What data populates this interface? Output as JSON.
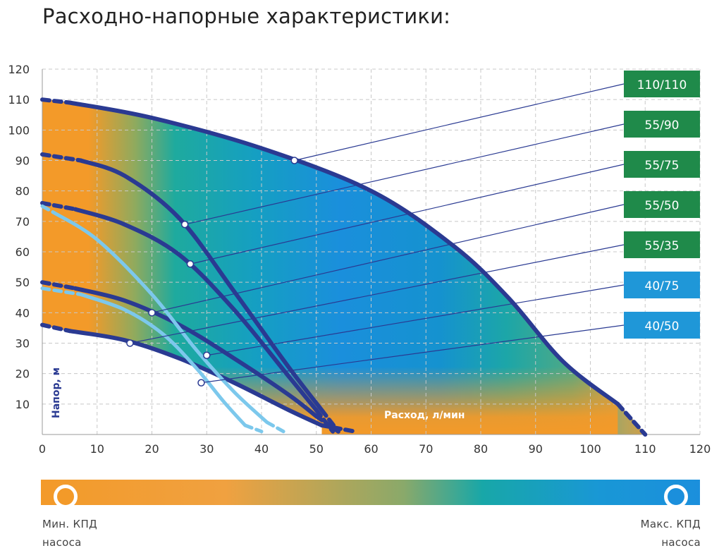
{
  "title": "Расходно-напорные характеристики:",
  "colors": {
    "curve_dark": "#2a3a92",
    "curve_light": "#7cc8ec",
    "label_green": "#1f8a4a",
    "label_blue": "#1f97d8",
    "efficiency_min": "#f39a29",
    "efficiency_max": "#1b8fdc"
  },
  "chart_data": {
    "type": "line",
    "xlabel": "Расход, л/мин",
    "ylabel": "Напор, м",
    "xlim": [
      0,
      120
    ],
    "ylim": [
      0,
      120
    ],
    "x_ticks": [
      "0",
      "10",
      "20",
      "30",
      "40",
      "50",
      "60",
      "70",
      "80",
      "90",
      "100",
      "110",
      "120"
    ],
    "y_ticks": [
      "10",
      "20",
      "30",
      "40",
      "50",
      "60",
      "70",
      "80",
      "90",
      "100",
      "110",
      "120"
    ],
    "grid": true,
    "series": [
      {
        "name": "110/110",
        "label_color": "green",
        "style": "dark",
        "solid": [
          [
            5,
            109
          ],
          [
            20,
            104
          ],
          [
            40,
            94
          ],
          [
            60,
            80
          ],
          [
            75,
            62
          ],
          [
            85,
            45
          ],
          [
            95,
            24
          ],
          [
            105,
            10
          ]
        ],
        "dash_start": [
          [
            0,
            110
          ],
          [
            5,
            109
          ]
        ],
        "dash_end": [
          [
            105,
            10
          ],
          [
            110,
            0
          ]
        ],
        "marker": [
          46,
          90
        ]
      },
      {
        "name": "55/90",
        "label_color": "green",
        "style": "dark",
        "solid": [
          [
            7,
            90
          ],
          [
            15,
            85
          ],
          [
            25,
            71
          ],
          [
            35,
            47
          ],
          [
            45,
            22
          ],
          [
            51,
            8
          ]
        ],
        "dash_start": [
          [
            0,
            92
          ],
          [
            7,
            90
          ]
        ],
        "dash_end": [
          [
            51,
            8
          ],
          [
            54,
            1
          ]
        ],
        "marker": [
          26,
          69
        ]
      },
      {
        "name": "55/75",
        "label_color": "green",
        "style": "dark",
        "solid": [
          [
            6,
            74
          ],
          [
            15,
            69
          ],
          [
            25,
            59
          ],
          [
            35,
            41
          ],
          [
            45,
            19
          ],
          [
            50,
            8
          ]
        ],
        "dash_start": [
          [
            0,
            76
          ],
          [
            6,
            74
          ]
        ],
        "dash_end": [
          [
            50,
            8
          ],
          [
            53,
            1
          ]
        ],
        "marker": [
          27,
          56
        ]
      },
      {
        "name": "55/50",
        "label_color": "green",
        "style": "dark",
        "solid": [
          [
            6,
            48
          ],
          [
            15,
            44
          ],
          [
            25,
            36
          ],
          [
            35,
            25
          ],
          [
            45,
            13
          ],
          [
            50,
            6
          ]
        ],
        "dash_start": [
          [
            0,
            50
          ],
          [
            6,
            48
          ]
        ],
        "dash_end": [
          [
            50,
            6
          ],
          [
            54,
            1
          ]
        ],
        "marker": [
          20,
          40
        ]
      },
      {
        "name": "55/35",
        "label_color": "green",
        "style": "dark",
        "solid": [
          [
            5,
            34
          ],
          [
            15,
            31
          ],
          [
            25,
            25
          ],
          [
            35,
            17
          ],
          [
            45,
            8
          ],
          [
            51,
            3
          ]
        ],
        "dash_start": [
          [
            0,
            36
          ],
          [
            5,
            34
          ]
        ],
        "dash_end": [
          [
            51,
            3
          ],
          [
            57,
            1
          ]
        ],
        "marker": [
          16,
          30
        ]
      },
      {
        "name": "40/75",
        "label_color": "blue",
        "style": "light",
        "solid": [
          [
            2,
            73
          ],
          [
            10,
            64
          ],
          [
            20,
            46
          ],
          [
            28,
            28
          ],
          [
            35,
            14
          ],
          [
            41,
            4
          ]
        ],
        "dash_start": [
          [
            0,
            75
          ],
          [
            2,
            73
          ]
        ],
        "dash_end": [
          [
            41,
            4
          ],
          [
            44,
            1
          ]
        ],
        "marker": [
          30,
          26
        ]
      },
      {
        "name": "40/50",
        "label_color": "blue",
        "style": "light",
        "solid": [
          [
            7,
            46
          ],
          [
            15,
            41
          ],
          [
            22,
            33
          ],
          [
            28,
            22
          ],
          [
            33,
            11
          ],
          [
            37,
            3
          ]
        ],
        "dash_start": [
          [
            0,
            48
          ],
          [
            7,
            46
          ]
        ],
        "dash_end": [
          [
            37,
            3
          ],
          [
            40,
            1
          ]
        ],
        "marker": [
          29,
          17
        ]
      }
    ]
  },
  "efficiency_bar": {
    "min_label": [
      "Мин. КПД",
      "насоса"
    ],
    "max_label": [
      "Макс. КПД",
      "насоса"
    ]
  }
}
